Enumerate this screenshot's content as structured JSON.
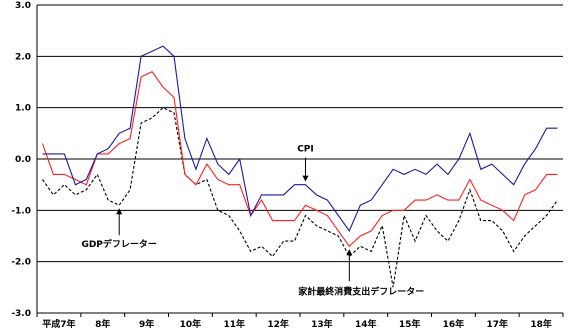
{
  "chart_data": {
    "type": "line",
    "title": "",
    "xlabel": "",
    "ylabel": "",
    "ylim": [
      -3.0,
      3.0
    ],
    "yticks": [
      "3.0",
      "2.0",
      "1.0",
      "0.0",
      "-1.0",
      "-2.0",
      "-3.0"
    ],
    "ytick_values": [
      3,
      2,
      1,
      0,
      -1,
      -2,
      -3
    ],
    "x_tick_labels": [
      "平成7年",
      "8年",
      "9年",
      "10年",
      "11年",
      "12年",
      "13年",
      "14年",
      "15年",
      "16年",
      "17年",
      "18年"
    ],
    "grid": "horizontal",
    "x": [
      "7-I",
      "7-II",
      "7-III",
      "7-IV",
      "8-I",
      "8-II",
      "8-III",
      "8-IV",
      "9-I",
      "9-II",
      "9-III",
      "9-IV",
      "10-I",
      "10-II",
      "10-III",
      "10-IV",
      "11-I",
      "11-II",
      "11-III",
      "11-IV",
      "12-I",
      "12-II",
      "12-III",
      "12-IV",
      "13-I",
      "13-II",
      "13-III",
      "13-IV",
      "14-I",
      "14-II",
      "14-III",
      "14-IV",
      "15-I",
      "15-II",
      "15-III",
      "15-IV",
      "16-I",
      "16-II",
      "16-III",
      "16-IV",
      "17-I",
      "17-II",
      "17-III",
      "17-IV",
      "18-I",
      "18-II",
      "18-III",
      "18-IV"
    ],
    "series": [
      {
        "name": "CPI",
        "color": "#1a1aa0",
        "style": "solid",
        "values": [
          0.1,
          0.1,
          0.1,
          -0.5,
          -0.4,
          0.1,
          0.2,
          0.5,
          0.6,
          2.0,
          2.1,
          2.2,
          2.0,
          0.4,
          -0.2,
          0.4,
          -0.1,
          -0.3,
          0.0,
          -1.1,
          -0.7,
          -0.7,
          -0.7,
          -0.5,
          -0.5,
          -0.7,
          -0.8,
          -1.1,
          -1.4,
          -0.9,
          -0.8,
          -0.5,
          -0.2,
          -0.3,
          -0.2,
          -0.3,
          -0.1,
          -0.3,
          0.0,
          0.5,
          -0.2,
          -0.1,
          -0.3,
          -0.5,
          -0.1,
          0.2,
          0.6,
          0.6
        ]
      },
      {
        "name": "家計最終消費支出デフレーター",
        "color": "#ff2020",
        "style": "solid",
        "values": [
          0.3,
          -0.3,
          -0.3,
          -0.4,
          -0.5,
          0.1,
          0.1,
          0.3,
          0.4,
          1.6,
          1.7,
          1.4,
          1.2,
          -0.3,
          -0.5,
          -0.1,
          -0.4,
          -0.5,
          -0.5,
          -1.1,
          -0.8,
          -1.2,
          -1.2,
          -1.2,
          -0.9,
          -1.0,
          -1.1,
          -1.4,
          -1.7,
          -1.5,
          -1.4,
          -1.1,
          -1.0,
          -1.0,
          -0.8,
          -0.8,
          -0.7,
          -0.8,
          -0.8,
          -0.4,
          -0.8,
          -0.9,
          -1.0,
          -1.2,
          -0.7,
          -0.6,
          -0.3,
          -0.3
        ]
      },
      {
        "name": "GDPデフレーター",
        "color": "#000000",
        "style": "dashed",
        "values": [
          -0.4,
          -0.7,
          -0.5,
          -0.7,
          -0.6,
          -0.3,
          -0.8,
          -0.9,
          -0.6,
          0.7,
          0.8,
          1.0,
          0.9,
          -0.3,
          -0.5,
          -0.4,
          -1.0,
          -1.1,
          -1.4,
          -1.8,
          -1.7,
          -1.9,
          -1.6,
          -1.6,
          -1.1,
          -1.3,
          -1.4,
          -1.5,
          -1.9,
          -1.7,
          -1.8,
          -1.3,
          -2.5,
          -1.1,
          -1.6,
          -1.1,
          -1.4,
          -1.6,
          -1.2,
          -0.6,
          -1.2,
          -1.2,
          -1.4,
          -1.8,
          -1.5,
          -1.3,
          -1.1,
          -0.8
        ]
      }
    ],
    "annotations": [
      {
        "label": "CPI",
        "target_series": 0,
        "target_index": 24
      },
      {
        "label": "GDPデフレーター",
        "target_series": 2,
        "target_index": 7
      },
      {
        "label": "家計最終消費支出デフレーター",
        "target_series": 1,
        "target_index": 28
      }
    ]
  }
}
